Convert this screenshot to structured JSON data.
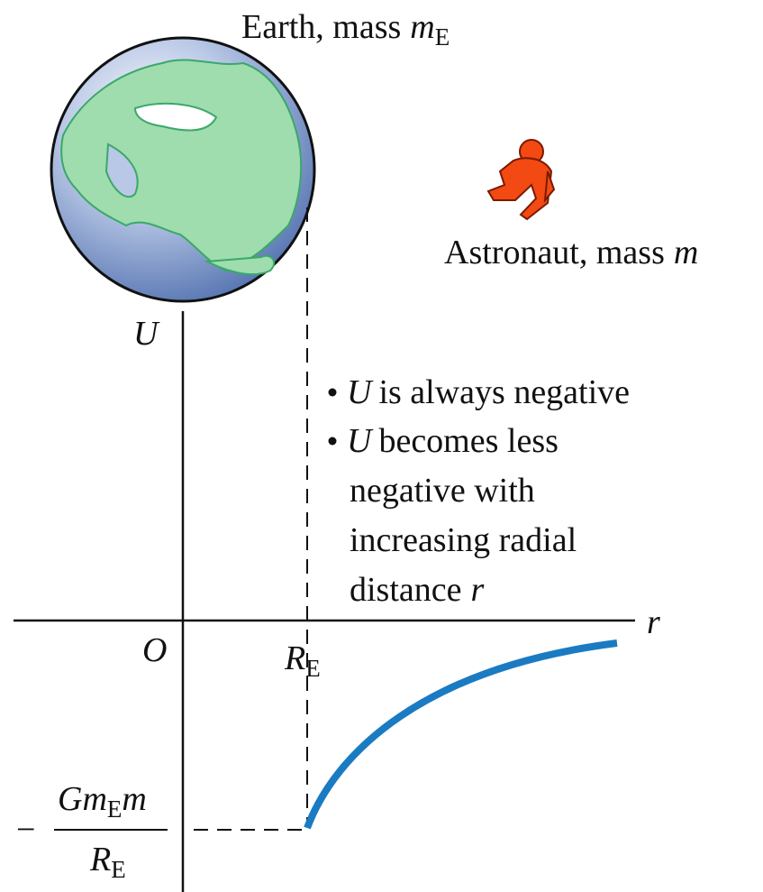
{
  "earth_label": {
    "text": "Earth, mass",
    "symbol": "m",
    "subscript": "E"
  },
  "astronaut_label": {
    "text": "Astronaut, mass",
    "symbol": "m"
  },
  "axes": {
    "y_label": "U",
    "x_label": "r",
    "origin": "O",
    "radius_label": {
      "symbol": "R",
      "subscript": "E"
    }
  },
  "notes": [
    {
      "symbol": "U",
      "text": "is always negative"
    },
    {
      "symbol": "U",
      "lines": [
        "becomes less",
        "negative with",
        "increasing radial",
        "distance"
      ],
      "end_symbol": "r"
    }
  ],
  "minimum_label": {
    "sign": "−",
    "numerator": {
      "before": "Gm",
      "subscript": "E",
      "after": "m"
    },
    "denominator": {
      "symbol": "R",
      "subscript": "E"
    }
  }
}
